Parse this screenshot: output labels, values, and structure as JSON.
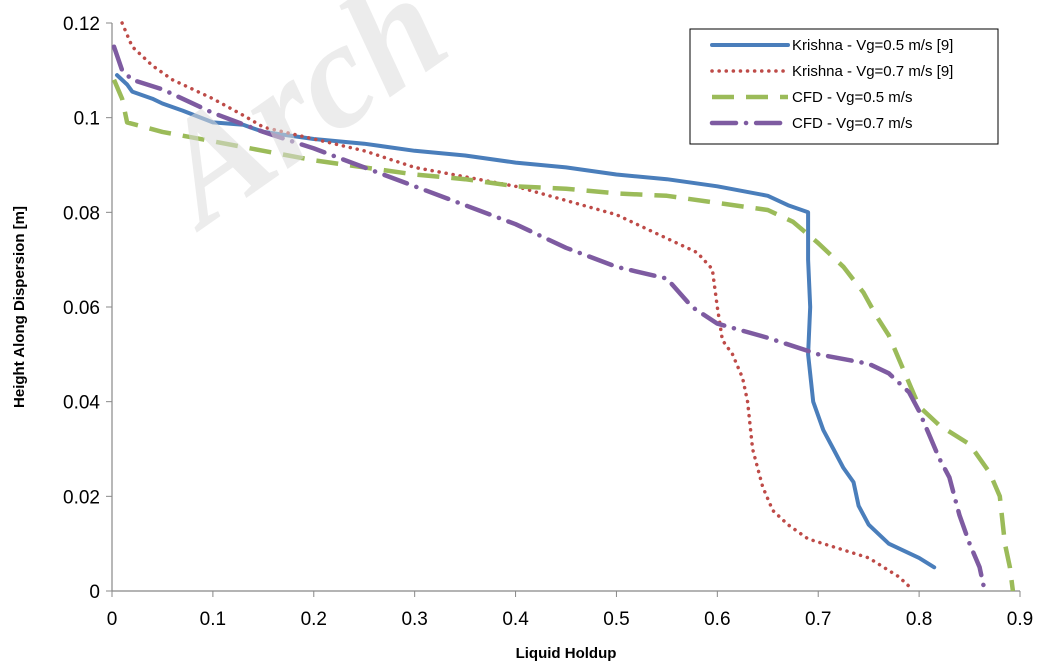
{
  "chart_data": {
    "type": "line",
    "title": "",
    "xlabel": "Liquid Holdup",
    "ylabel": "Height Along Dispersion [m]",
    "xlim": [
      0,
      0.9
    ],
    "ylim": [
      0,
      0.12
    ],
    "x_ticks": [
      0,
      0.1,
      0.2,
      0.3,
      0.4,
      0.5,
      0.6,
      0.7,
      0.8,
      0.9
    ],
    "y_ticks": [
      0,
      0.02,
      0.04,
      0.06,
      0.08,
      0.1,
      0.12
    ],
    "x_tick_labels": [
      "0",
      "0.1",
      "0.2",
      "0.3",
      "0.4",
      "0.5",
      "0.6",
      "0.7",
      "0.8",
      "0.9"
    ],
    "y_tick_labels": [
      "0",
      "0.02",
      "0.04",
      "0.06",
      "0.08",
      "0.1",
      "0.12"
    ],
    "grid": false,
    "legend_position": "top-right",
    "series": [
      {
        "name": "Krishna - Vg=0.5 m/s [9]",
        "color": "#4a7ebb",
        "style": "solid",
        "points": [
          [
            0.005,
            0.109
          ],
          [
            0.015,
            0.107
          ],
          [
            0.02,
            0.1055
          ],
          [
            0.04,
            0.104
          ],
          [
            0.05,
            0.103
          ],
          [
            0.07,
            0.1015
          ],
          [
            0.1,
            0.099
          ],
          [
            0.13,
            0.0985
          ],
          [
            0.15,
            0.097
          ],
          [
            0.2,
            0.0955
          ],
          [
            0.25,
            0.0945
          ],
          [
            0.3,
            0.093
          ],
          [
            0.35,
            0.092
          ],
          [
            0.4,
            0.0905
          ],
          [
            0.45,
            0.0895
          ],
          [
            0.5,
            0.088
          ],
          [
            0.55,
            0.087
          ],
          [
            0.6,
            0.0855
          ],
          [
            0.65,
            0.0835
          ],
          [
            0.67,
            0.0815
          ],
          [
            0.69,
            0.08
          ],
          [
            0.69,
            0.07
          ],
          [
            0.692,
            0.06
          ],
          [
            0.69,
            0.05
          ],
          [
            0.695,
            0.04
          ],
          [
            0.705,
            0.034
          ],
          [
            0.715,
            0.03
          ],
          [
            0.725,
            0.026
          ],
          [
            0.735,
            0.023
          ],
          [
            0.74,
            0.018
          ],
          [
            0.75,
            0.014
          ],
          [
            0.77,
            0.01
          ],
          [
            0.8,
            0.007
          ],
          [
            0.815,
            0.005
          ]
        ]
      },
      {
        "name": "Krishna - Vg=0.7 m/s [9]",
        "color": "#be4b48",
        "style": "dotted",
        "points": [
          [
            0.01,
            0.12
          ],
          [
            0.02,
            0.115
          ],
          [
            0.04,
            0.111
          ],
          [
            0.06,
            0.108
          ],
          [
            0.1,
            0.104
          ],
          [
            0.13,
            0.1005
          ],
          [
            0.15,
            0.098
          ],
          [
            0.2,
            0.0955
          ],
          [
            0.25,
            0.093
          ],
          [
            0.3,
            0.0895
          ],
          [
            0.35,
            0.0875
          ],
          [
            0.4,
            0.0855
          ],
          [
            0.45,
            0.0825
          ],
          [
            0.5,
            0.0795
          ],
          [
            0.55,
            0.0745
          ],
          [
            0.58,
            0.0715
          ],
          [
            0.595,
            0.068
          ],
          [
            0.6,
            0.06
          ],
          [
            0.605,
            0.053
          ],
          [
            0.615,
            0.05
          ],
          [
            0.625,
            0.045
          ],
          [
            0.63,
            0.04
          ],
          [
            0.635,
            0.03
          ],
          [
            0.645,
            0.022
          ],
          [
            0.655,
            0.017
          ],
          [
            0.67,
            0.014
          ],
          [
            0.69,
            0.011
          ],
          [
            0.72,
            0.009
          ],
          [
            0.75,
            0.007
          ],
          [
            0.78,
            0.003
          ],
          [
            0.79,
            0.001
          ]
        ]
      },
      {
        "name": "CFD - Vg=0.5 m/s",
        "color": "#9bbb59",
        "style": "dashed",
        "points": [
          [
            0.002,
            0.108
          ],
          [
            0.01,
            0.104
          ],
          [
            0.015,
            0.099
          ],
          [
            0.05,
            0.097
          ],
          [
            0.1,
            0.095
          ],
          [
            0.15,
            0.093
          ],
          [
            0.2,
            0.091
          ],
          [
            0.25,
            0.0895
          ],
          [
            0.3,
            0.088
          ],
          [
            0.35,
            0.087
          ],
          [
            0.4,
            0.0855
          ],
          [
            0.45,
            0.085
          ],
          [
            0.5,
            0.084
          ],
          [
            0.55,
            0.0835
          ],
          [
            0.6,
            0.082
          ],
          [
            0.65,
            0.0805
          ],
          [
            0.675,
            0.078
          ],
          [
            0.7,
            0.0735
          ],
          [
            0.725,
            0.0685
          ],
          [
            0.745,
            0.063
          ],
          [
            0.758,
            0.058
          ],
          [
            0.77,
            0.054
          ],
          [
            0.78,
            0.049
          ],
          [
            0.792,
            0.043
          ],
          [
            0.8,
            0.039
          ],
          [
            0.82,
            0.035
          ],
          [
            0.85,
            0.031
          ],
          [
            0.87,
            0.025
          ],
          [
            0.88,
            0.02
          ],
          [
            0.885,
            0.01
          ],
          [
            0.89,
            0.005
          ],
          [
            0.893,
            0.0
          ]
        ]
      },
      {
        "name": "CFD - Vg=0.7 m/s",
        "color": "#7e5ba1",
        "style": "dashdot",
        "points": [
          [
            0.002,
            0.115
          ],
          [
            0.01,
            0.11
          ],
          [
            0.02,
            0.108
          ],
          [
            0.05,
            0.106
          ],
          [
            0.1,
            0.101
          ],
          [
            0.15,
            0.097
          ],
          [
            0.2,
            0.0935
          ],
          [
            0.25,
            0.0895
          ],
          [
            0.3,
            0.0855
          ],
          [
            0.35,
            0.0815
          ],
          [
            0.4,
            0.0775
          ],
          [
            0.45,
            0.0725
          ],
          [
            0.5,
            0.0685
          ],
          [
            0.55,
            0.066
          ],
          [
            0.575,
            0.06
          ],
          [
            0.6,
            0.0565
          ],
          [
            0.65,
            0.0535
          ],
          [
            0.7,
            0.05
          ],
          [
            0.75,
            0.048
          ],
          [
            0.77,
            0.046
          ],
          [
            0.79,
            0.042
          ],
          [
            0.8,
            0.038
          ],
          [
            0.81,
            0.033
          ],
          [
            0.82,
            0.028
          ],
          [
            0.83,
            0.024
          ],
          [
            0.835,
            0.02
          ],
          [
            0.84,
            0.016
          ],
          [
            0.85,
            0.01
          ],
          [
            0.86,
            0.005
          ],
          [
            0.865,
            0.0
          ]
        ]
      }
    ]
  }
}
